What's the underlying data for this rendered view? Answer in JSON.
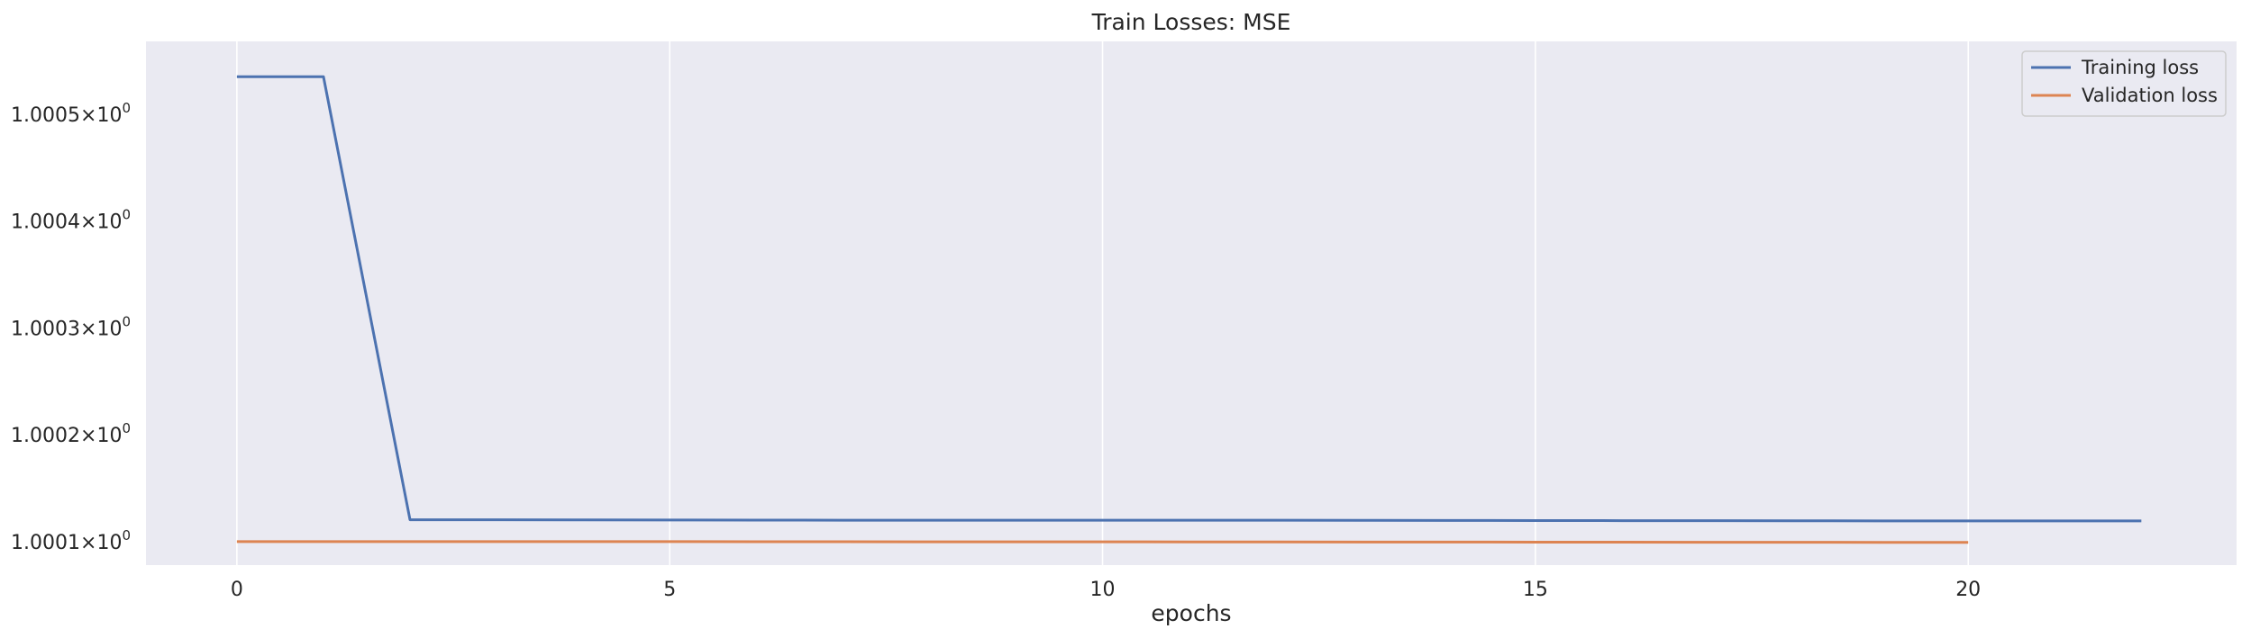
{
  "chart_data": {
    "type": "line",
    "title": "Train Losses:  MSE",
    "xlabel": "epochs",
    "ylabel": "",
    "xlim": [
      -1.05,
      23.1
    ],
    "ylim": [
      1.000078,
      1.000568
    ],
    "y_scale": "log",
    "grid": "x-only",
    "background": "#eaeaf2",
    "legend_position": "top-right",
    "x_ticks": [
      0,
      5,
      10,
      15,
      20
    ],
    "x_tick_labels": [
      "0",
      "5",
      "10",
      "15",
      "20"
    ],
    "y_ticks": [
      1.0001,
      1.0002,
      1.0003,
      1.0004,
      1.0005
    ],
    "y_tick_labels": [
      {
        "mantissa": "1.0001",
        "base": "10",
        "exp": "0"
      },
      {
        "mantissa": "1.0002",
        "base": "10",
        "exp": "0"
      },
      {
        "mantissa": "1.0003",
        "base": "10",
        "exp": "0"
      },
      {
        "mantissa": "1.0004",
        "base": "10",
        "exp": "0"
      },
      {
        "mantissa": "1.0005",
        "base": "10",
        "exp": "0"
      }
    ],
    "series": [
      {
        "name": "Training loss",
        "color": "#4c72b0",
        "x": [
          0,
          1,
          2,
          3,
          4,
          5,
          6,
          7,
          8,
          9,
          10,
          11,
          12,
          13,
          14,
          15,
          16,
          17,
          18,
          19,
          20,
          21,
          22
        ],
        "y": [
          1.000535,
          1.000535,
          1.0001204,
          1.0001204,
          1.0001203,
          1.0001202,
          1.0001201,
          1.00012,
          1.00012,
          1.00012,
          1.00012,
          1.00012,
          1.00012,
          1.0001199,
          1.0001198,
          1.0001197,
          1.0001196,
          1.0001196,
          1.0001195,
          1.0001194,
          1.0001194,
          1.0001194,
          1.0001193
        ]
      },
      {
        "name": "Validation loss",
        "color": "#dd8452",
        "x": [
          0,
          1,
          2,
          3,
          4,
          5,
          6,
          7,
          8,
          9,
          10,
          11,
          12,
          13,
          14,
          15,
          16,
          17,
          18,
          19,
          20
        ],
        "y": [
          1.0001,
          1.0001,
          1.0001,
          1.0001,
          1.0001,
          1.0001,
          1.0000999,
          1.0000999,
          1.0000998,
          1.0000998,
          1.0000998,
          1.0000997,
          1.0000997,
          1.0000996,
          1.0000996,
          1.0000995,
          1.0000995,
          1.0000994,
          1.0000994,
          1.0000993,
          1.0000993
        ]
      }
    ]
  }
}
